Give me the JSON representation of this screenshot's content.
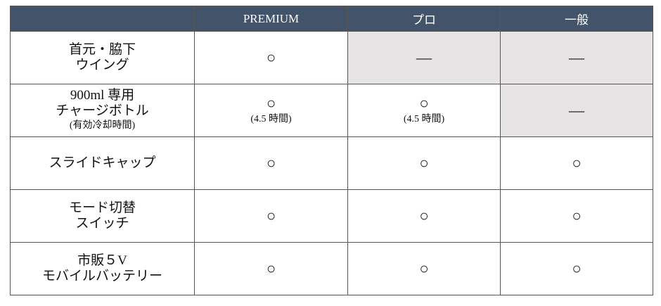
{
  "header": {
    "blank": "",
    "columns": [
      "PREMIUM",
      "プロ",
      "一般"
    ]
  },
  "colors": {
    "header_bg": "#435369",
    "unavailable_bg": "#e6e4e4"
  },
  "rows": [
    {
      "label_lines": [
        "首元・脇下",
        "ウイング"
      ],
      "cells": [
        {
          "mark": "○",
          "note": "",
          "grey": false
        },
        {
          "mark": "—",
          "note": "",
          "grey": true
        },
        {
          "mark": "—",
          "note": "",
          "grey": true
        }
      ]
    },
    {
      "label_lines": [
        "900ml 専用",
        "チャージボトル"
      ],
      "label_note": "(有効冷却時間)",
      "cells": [
        {
          "mark": "○",
          "note": "(4.5 時間)",
          "grey": false
        },
        {
          "mark": "○",
          "note": "(4.5 時間)",
          "grey": false
        },
        {
          "mark": "—",
          "note": "",
          "grey": true
        }
      ]
    },
    {
      "label_lines": [
        "スライドキャップ"
      ],
      "cells": [
        {
          "mark": "○",
          "note": "",
          "grey": false
        },
        {
          "mark": "○",
          "note": "",
          "grey": false
        },
        {
          "mark": "○",
          "note": "",
          "grey": false
        }
      ]
    },
    {
      "label_lines": [
        "モード切替",
        "スイッチ"
      ],
      "cells": [
        {
          "mark": "○",
          "note": "",
          "grey": false
        },
        {
          "mark": "○",
          "note": "",
          "grey": false
        },
        {
          "mark": "○",
          "note": "",
          "grey": false
        }
      ]
    },
    {
      "label_lines": [
        "市販５V",
        "モバイルバッテリー"
      ],
      "cells": [
        {
          "mark": "○",
          "note": "",
          "grey": false
        },
        {
          "mark": "○",
          "note": "",
          "grey": false
        },
        {
          "mark": "○",
          "note": "",
          "grey": false
        }
      ]
    }
  ]
}
